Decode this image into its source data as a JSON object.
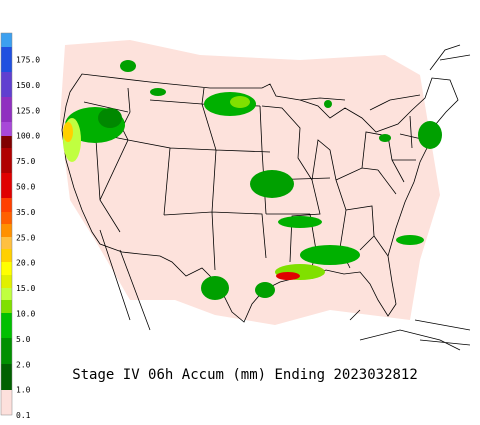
{
  "title": "Stage IV 06h Accum (mm) Ending 2023032812",
  "legend": {
    "labels": [
      "175.0",
      "150.0",
      "125.0",
      "100.0",
      "75.0",
      "50.0",
      "35.0",
      "25.0",
      "20.0",
      "15.0",
      "10.0",
      "5.0",
      "2.0",
      "1.0",
      "0.1"
    ]
  }
}
